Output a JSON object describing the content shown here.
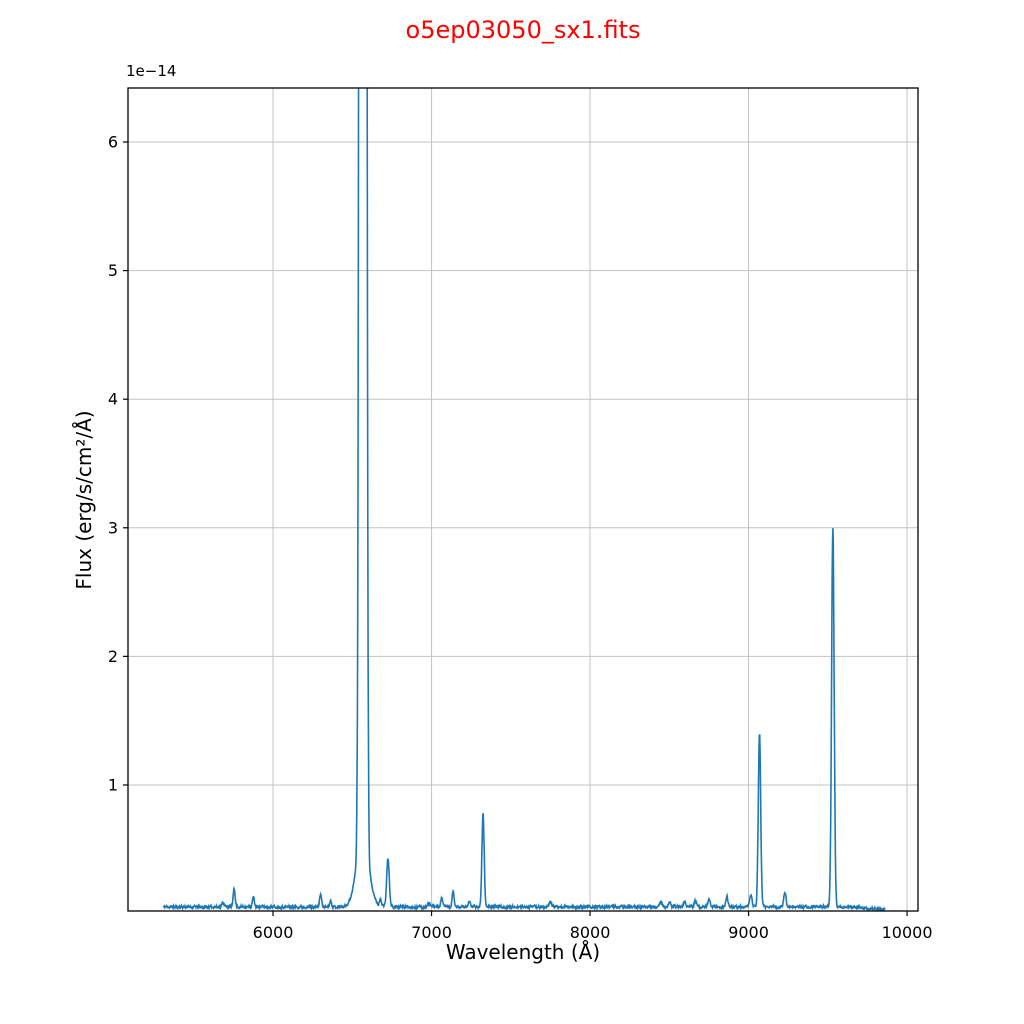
{
  "figure": {
    "background": "#ffffff"
  },
  "colors": {
    "title": "#ff0000",
    "line": "#1f77b4",
    "grid": "#c3c3c3",
    "spine": "#000000",
    "tick_text": "#000000"
  },
  "chart_data": {
    "type": "line",
    "title": "o5ep03050_sx1.fits",
    "xlabel": "Wavelength (Å)",
    "ylabel": "Flux (erg/s/cm²/Å)",
    "y_scale_label": "1e−14",
    "y_unit_factor": "1e-14",
    "xlim": [
      5085,
      10069
    ],
    "ylim": [
      0.02,
      6.42
    ],
    "x_ticks": [
      6000,
      7000,
      8000,
      9000,
      10000
    ],
    "y_ticks": [
      1,
      2,
      3,
      4,
      5,
      6
    ],
    "grid": true,
    "legend": "none",
    "series_color": "#1f77b4",
    "wavelength_range": [
      5306,
      9861
    ],
    "continuum_level": 0.052,
    "noise_amplitude": 0.012,
    "end_dip": {
      "start": 9650,
      "drop": 0.02
    },
    "emission_lines": [
      {
        "wavelength": 5686,
        "peak": 0.035,
        "sigma": 7
      },
      {
        "wavelength": 5755,
        "peak": 0.145,
        "sigma": 6
      },
      {
        "wavelength": 5876,
        "peak": 0.075,
        "sigma": 6
      },
      {
        "wavelength": 6300,
        "peak": 0.1,
        "sigma": 6
      },
      {
        "wavelength": 6363,
        "peak": 0.05,
        "sigma": 6
      },
      {
        "wavelength": 6548,
        "peak": 7.0,
        "sigma": 8
      },
      {
        "wavelength": 6563,
        "peak": 55.0,
        "sigma": 9
      },
      {
        "wavelength": 6565,
        "peak": 0.55,
        "sigma": 38
      },
      {
        "wavelength": 6583,
        "peak": 15.0,
        "sigma": 8
      },
      {
        "wavelength": 6678,
        "peak": 0.055,
        "sigma": 6
      },
      {
        "wavelength": 6725,
        "peak": 0.38,
        "sigma": 8
      },
      {
        "wavelength": 6985,
        "peak": 0.03,
        "sigma": 7
      },
      {
        "wavelength": 7065,
        "peak": 0.07,
        "sigma": 6
      },
      {
        "wavelength": 7136,
        "peak": 0.115,
        "sigma": 6
      },
      {
        "wavelength": 7240,
        "peak": 0.045,
        "sigma": 7
      },
      {
        "wavelength": 7325,
        "peak": 0.74,
        "sigma": 7
      },
      {
        "wavelength": 7751,
        "peak": 0.04,
        "sigma": 7
      },
      {
        "wavelength": 8446,
        "peak": 0.05,
        "sigma": 7
      },
      {
        "wavelength": 8502,
        "peak": 0.042,
        "sigma": 7
      },
      {
        "wavelength": 8598,
        "peak": 0.047,
        "sigma": 7
      },
      {
        "wavelength": 8665,
        "peak": 0.05,
        "sigma": 7
      },
      {
        "wavelength": 8750,
        "peak": 0.058,
        "sigma": 7
      },
      {
        "wavelength": 8863,
        "peak": 0.08,
        "sigma": 7
      },
      {
        "wavelength": 9015,
        "peak": 0.1,
        "sigma": 7
      },
      {
        "wavelength": 9069,
        "peak": 1.35,
        "sigma": 7.5
      },
      {
        "wavelength": 9229,
        "peak": 0.12,
        "sigma": 7
      },
      {
        "wavelength": 9532,
        "peak": 2.95,
        "sigma": 8
      }
    ]
  }
}
